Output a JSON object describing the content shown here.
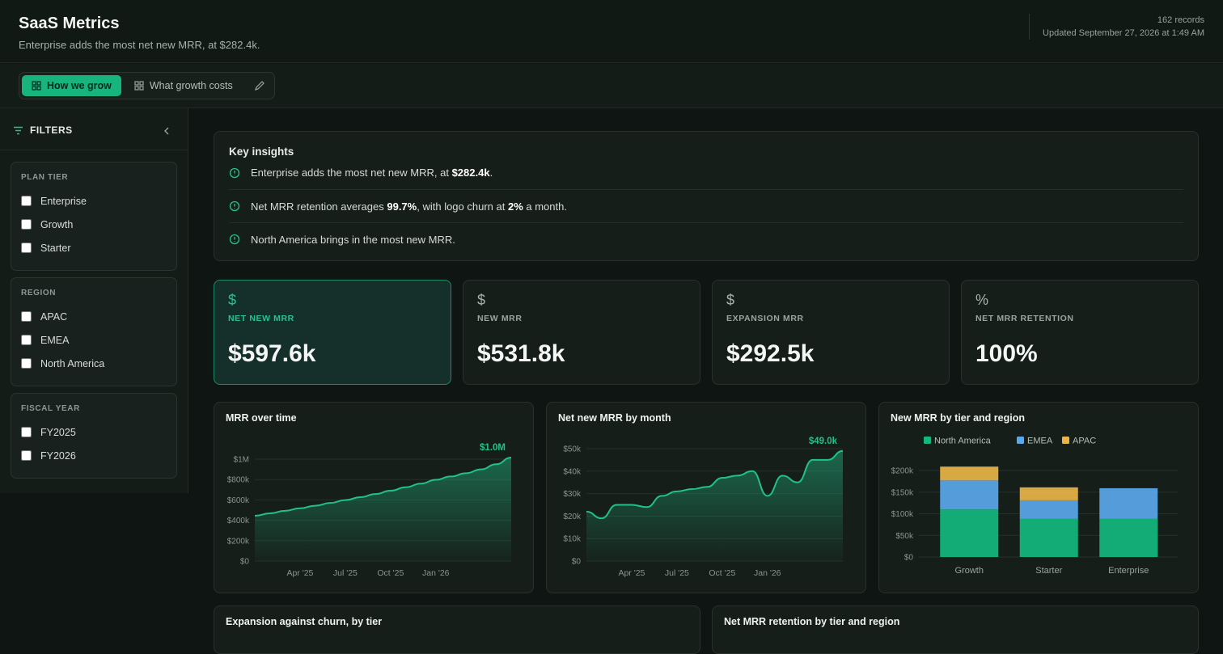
{
  "header": {
    "title": "SaaS Metrics",
    "subtitle": "Enterprise adds the most net new MRR, at $282.4k.",
    "records": "162 records",
    "updated": "Updated September 27, 2026 at 1:49 AM"
  },
  "tabs": [
    {
      "label": "How we grow",
      "active": true
    },
    {
      "label": "What growth costs",
      "active": false
    }
  ],
  "filters": {
    "title": "FILTERS",
    "groups": [
      {
        "title": "PLAN TIER",
        "options": [
          "Enterprise",
          "Growth",
          "Starter"
        ]
      },
      {
        "title": "REGION",
        "options": [
          "APAC",
          "EMEA",
          "North America"
        ]
      },
      {
        "title": "FISCAL YEAR",
        "options": [
          "FY2025",
          "FY2026"
        ]
      }
    ]
  },
  "insights": {
    "title": "Key insights",
    "items": [
      [
        "Enterprise adds the most net new MRR, at ",
        "$282.4k",
        "."
      ],
      [
        "Net MRR retention averages ",
        "99.7%",
        ", with logo churn at ",
        "2%",
        " a month."
      ],
      [
        "North America brings in the most new MRR."
      ]
    ]
  },
  "kpis": [
    {
      "icon": "$",
      "label": "NET NEW MRR",
      "value": "$597.6k",
      "active": true
    },
    {
      "icon": "$",
      "label": "NEW MRR",
      "value": "$531.8k",
      "active": false
    },
    {
      "icon": "$",
      "label": "EXPANSION MRR",
      "value": "$292.5k",
      "active": false
    },
    {
      "icon": "%",
      "label": "NET MRR RETENTION",
      "value": "100%",
      "active": false
    }
  ],
  "chart_data": [
    {
      "type": "area",
      "title": "MRR over time",
      "color": "#22c08a",
      "categories": [
        null,
        null,
        null,
        "Apr '25",
        null,
        null,
        "Jul '25",
        null,
        null,
        "Oct '25",
        null,
        null,
        "Jan '26",
        null,
        null,
        null,
        null,
        null
      ],
      "values": [
        444000,
        468000,
        493000,
        518000,
        543000,
        570000,
        598000,
        627000,
        658000,
        690000,
        724000,
        760000,
        798000,
        830000,
        862000,
        900000,
        950000,
        1016000
      ],
      "annotation": "$1.0M",
      "ylim": [
        0,
        1000000
      ],
      "yticks": [
        {
          "value": 0,
          "label": "$0"
        },
        {
          "value": 200000,
          "label": "$200k"
        },
        {
          "value": 400000,
          "label": "$400k"
        },
        {
          "value": 600000,
          "label": "$600k"
        },
        {
          "value": 800000,
          "label": "$800k"
        },
        {
          "value": 1000000,
          "label": "$1M"
        }
      ],
      "grid": true
    },
    {
      "type": "area",
      "title": "Net new MRR by month",
      "color": "#22c08a",
      "categories": [
        null,
        null,
        null,
        "Apr '25",
        null,
        null,
        "Jul '25",
        null,
        null,
        "Oct '25",
        null,
        null,
        "Jan '26",
        null,
        null,
        null,
        null,
        null
      ],
      "values": [
        22000,
        19000,
        25000,
        25000,
        24000,
        29000,
        31000,
        32000,
        33000,
        37000,
        38000,
        40000,
        29000,
        38000,
        35000,
        45000,
        45000,
        49000
      ],
      "annotation": "$49.0k",
      "ylim": [
        0,
        50000
      ],
      "yticks": [
        {
          "value": 0,
          "label": "$0"
        },
        {
          "value": 10000,
          "label": "$10k"
        },
        {
          "value": 20000,
          "label": "$20k"
        },
        {
          "value": 30000,
          "label": "$30k"
        },
        {
          "value": 40000,
          "label": "$40k"
        },
        {
          "value": 50000,
          "label": "$50k"
        }
      ],
      "grid": true
    },
    {
      "type": "stacked-bar",
      "title": "New MRR by tier and region",
      "categories": [
        "Growth",
        "Starter",
        "Enterprise"
      ],
      "series": [
        {
          "name": "North America",
          "color": "#14b87e",
          "values": [
            110000,
            88000,
            88000
          ]
        },
        {
          "name": "EMEA",
          "color": "#5aa7ea",
          "values": [
            67000,
            43000,
            71000
          ]
        },
        {
          "name": "APAC",
          "color": "#e9b546",
          "values": [
            32000,
            30000,
            0
          ]
        }
      ],
      "ylim": [
        0,
        200000
      ],
      "yticks": [
        {
          "value": 0,
          "label": "$0"
        },
        {
          "value": 50000,
          "label": "$50k"
        },
        {
          "value": 100000,
          "label": "$100k"
        },
        {
          "value": 150000,
          "label": "$150k"
        },
        {
          "value": 200000,
          "label": "$200k"
        }
      ],
      "grid": true
    },
    {
      "title": "Expansion against churn, by tier"
    },
    {
      "title": "Net MRR retention by tier and region"
    }
  ]
}
